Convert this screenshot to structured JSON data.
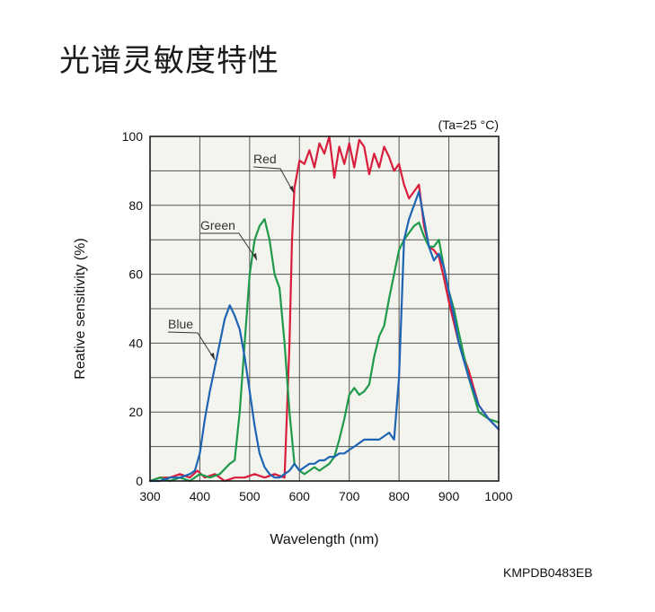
{
  "page": {
    "title": "光谱灵敏度特性"
  },
  "chart_data": {
    "type": "line",
    "condition": "(Ta=25 °C)",
    "xlabel": "Wavelength (nm)",
    "ylabel": "Reative sensitivity (%)",
    "xlim": [
      300,
      1000
    ],
    "ylim": [
      0,
      100
    ],
    "xticks": [
      300,
      400,
      500,
      600,
      700,
      800,
      900,
      1000
    ],
    "yticks": [
      0,
      20,
      40,
      60,
      80,
      100
    ],
    "grid": true,
    "colors": {
      "Red": "#d81e3c",
      "Green": "#1f9a4a",
      "Blue": "#1e64b4"
    },
    "series": [
      {
        "name": "Red",
        "x": [
          300,
          320,
          340,
          360,
          380,
          395,
          410,
          430,
          450,
          470,
          490,
          510,
          530,
          550,
          570,
          580,
          585,
          590,
          600,
          610,
          620,
          630,
          640,
          650,
          660,
          670,
          680,
          690,
          700,
          710,
          720,
          730,
          740,
          750,
          760,
          770,
          780,
          790,
          800,
          810,
          820,
          830,
          840,
          850,
          860,
          870,
          880,
          890,
          900,
          910,
          920,
          940,
          960,
          980,
          1000
        ],
        "y": [
          0,
          1,
          1,
          2,
          1,
          3,
          1,
          2,
          0,
          1,
          1,
          2,
          1,
          2,
          1,
          40,
          70,
          85,
          93,
          92,
          96,
          91,
          98,
          95,
          100,
          88,
          97,
          92,
          98,
          91,
          99,
          97,
          89,
          95,
          91,
          97,
          94,
          90,
          92,
          86,
          82,
          84,
          86,
          74,
          68,
          67,
          65,
          59,
          52,
          46,
          40,
          32,
          22,
          18,
          15
        ]
      },
      {
        "name": "Green",
        "x": [
          300,
          320,
          340,
          360,
          380,
          400,
          420,
          440,
          460,
          470,
          480,
          490,
          500,
          510,
          520,
          530,
          540,
          550,
          560,
          570,
          580,
          590,
          600,
          610,
          620,
          630,
          640,
          650,
          660,
          670,
          680,
          690,
          700,
          710,
          720,
          730,
          740,
          750,
          760,
          770,
          780,
          790,
          800,
          810,
          820,
          830,
          840,
          850,
          860,
          870,
          880,
          890,
          900,
          910,
          920,
          940,
          960,
          980,
          1000
        ],
        "y": [
          0,
          1,
          0,
          1,
          0,
          2,
          1,
          2,
          5,
          6,
          20,
          40,
          60,
          70,
          74,
          76,
          70,
          60,
          56,
          40,
          20,
          5,
          3,
          2,
          3,
          4,
          3,
          4,
          5,
          7,
          12,
          18,
          25,
          27,
          25,
          26,
          28,
          36,
          42,
          45,
          53,
          60,
          67,
          70,
          72,
          74,
          75,
          71,
          68,
          68,
          70,
          62,
          55,
          50,
          43,
          30,
          20,
          18,
          17
        ]
      },
      {
        "name": "Blue",
        "x": [
          300,
          320,
          340,
          360,
          380,
          390,
          400,
          410,
          420,
          430,
          440,
          450,
          460,
          470,
          480,
          490,
          500,
          510,
          520,
          530,
          540,
          550,
          560,
          570,
          580,
          590,
          600,
          610,
          620,
          630,
          640,
          650,
          660,
          670,
          680,
          690,
          700,
          710,
          720,
          730,
          740,
          750,
          760,
          770,
          780,
          790,
          800,
          810,
          820,
          830,
          840,
          850,
          860,
          870,
          880,
          890,
          900,
          910,
          920,
          940,
          960,
          980,
          1000
        ],
        "y": [
          0,
          0,
          1,
          1,
          2,
          3,
          8,
          18,
          26,
          33,
          40,
          47,
          51,
          48,
          44,
          36,
          26,
          16,
          8,
          4,
          2,
          1,
          1,
          2,
          3,
          5,
          3,
          4,
          5,
          5,
          6,
          6,
          7,
          7,
          8,
          8,
          9,
          10,
          11,
          12,
          12,
          12,
          12,
          13,
          14,
          12,
          30,
          70,
          76,
          80,
          84,
          76,
          68,
          64,
          66,
          62,
          55,
          48,
          40,
          30,
          22,
          18,
          15
        ]
      }
    ],
    "annotations": [
      {
        "text": "Red",
        "series": "Red"
      },
      {
        "text": "Green",
        "series": "Green"
      },
      {
        "text": "Blue",
        "series": "Blue"
      }
    ],
    "footer_code": "KMPDB0483EB"
  }
}
